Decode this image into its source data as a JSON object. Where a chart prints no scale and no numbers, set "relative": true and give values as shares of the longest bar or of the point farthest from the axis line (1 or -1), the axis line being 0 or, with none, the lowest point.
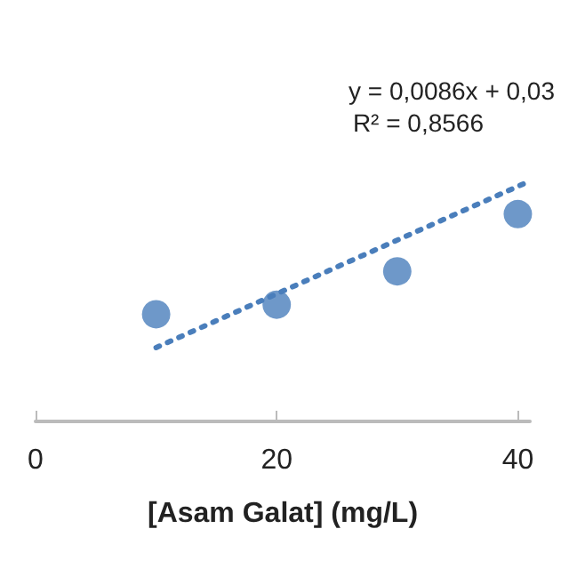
{
  "chart_data": {
    "type": "scatter",
    "xlabel": "[Asam Galat] (mg/L)",
    "relative": true,
    "xlim": [
      0,
      41
    ],
    "xticks": [
      0,
      20,
      40
    ],
    "grid": false,
    "marker": "circle",
    "annotations": [
      "y = 0,0086x + 0,03",
      "R² = 0,8566"
    ],
    "series": [
      {
        "color": "#4a7ebb",
        "x": [
          10,
          20,
          30,
          40
        ],
        "values": [
          0.45,
          0.49,
          0.63,
          0.87
        ]
      },
      {
        "type": "line",
        "color": "#4a7ebb",
        "line_style": "dotted",
        "marker": "none",
        "x": [
          10,
          40.6
        ],
        "values": [
          0.31,
          1
        ]
      }
    ]
  }
}
